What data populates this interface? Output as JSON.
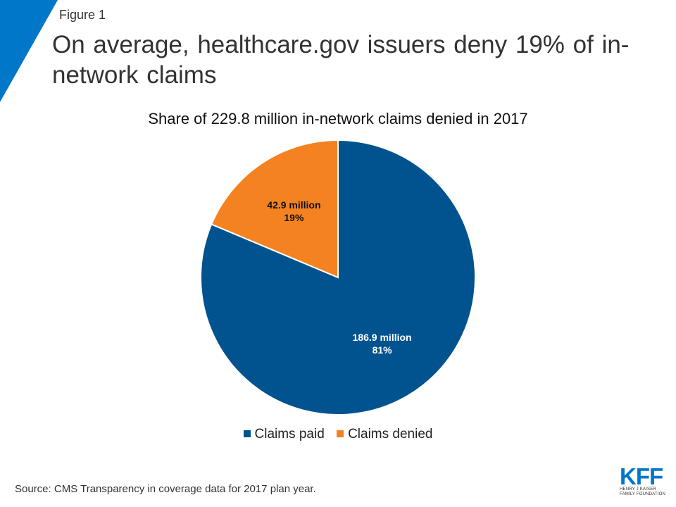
{
  "header": {
    "figure_label": "Figure 1",
    "title": "On average, healthcare.gov issuers deny 19% of in-network claims"
  },
  "chart_data": {
    "type": "pie",
    "title": "Share of 229.8 million in-network claims denied in 2017",
    "slices": [
      {
        "name": "Claims paid",
        "value": 186.9,
        "percent": 81,
        "value_label": "186.9 million",
        "percent_label": "81%",
        "color": "#00538f"
      },
      {
        "name": "Claims denied",
        "value": 42.9,
        "percent": 19,
        "value_label": "42.9 million",
        "percent_label": "19%",
        "color": "#f58220"
      }
    ],
    "legend_position": "bottom"
  },
  "legend": {
    "paid_label": "Claims paid",
    "denied_label": "Claims denied"
  },
  "footer": {
    "source": "Source: CMS Transparency  in coverage data for 2017 plan year."
  },
  "logo": {
    "mark": "KFF",
    "line1": "HENRY J KAISER",
    "line2": "FAMILY FOUNDATION"
  },
  "colors": {
    "accent_blue": "#0077c8",
    "paid": "#00538f",
    "denied": "#f58220"
  }
}
